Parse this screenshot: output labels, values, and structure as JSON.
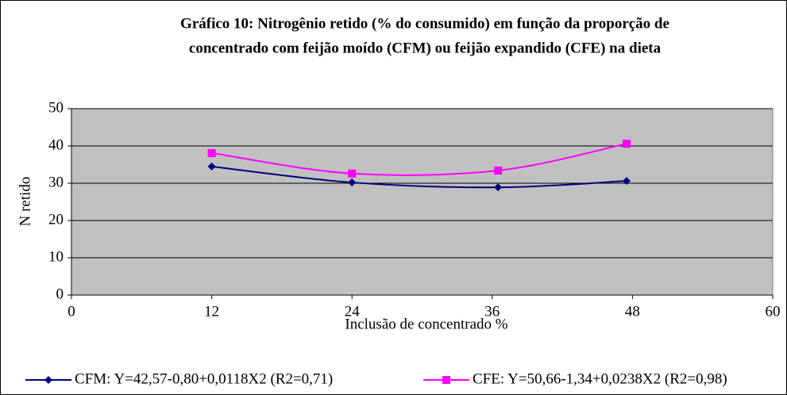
{
  "chart_data": {
    "type": "line",
    "title": [
      "Gráfico 10: Nitrogênio retido (% do consumido) em função da proporção de",
      "concentrado com feijão moído (CFM) ou feijão expandido (CFE) na dieta"
    ],
    "x_label": "Inclusão de concentrado %",
    "y_label": "N retido",
    "x": [
      12,
      24,
      36.5,
      47.5
    ],
    "series": [
      {
        "name": "CFM: Y=42,57-0,80+0,0118X2 (R2=0,71)",
        "color": "#000080",
        "marker": "diamond",
        "values": [
          34.5,
          30.2,
          28.9,
          30.6
        ]
      },
      {
        "name": "CFE: Y=50,66-1,34+0,0238X2 (R2=0,98)",
        "color": "#ff00ff",
        "marker": "square",
        "values": [
          38.1,
          32.6,
          33.4,
          40.6
        ]
      }
    ],
    "xlim": [
      0,
      60
    ],
    "xticks": [
      0,
      12,
      24,
      36,
      48,
      60
    ],
    "ylim": [
      0,
      50
    ],
    "yticks": [
      0,
      10,
      20,
      30,
      40,
      50
    ],
    "grid": true,
    "smooth": true,
    "plot_background": "#c0c0c0",
    "legend": "bottom"
  }
}
